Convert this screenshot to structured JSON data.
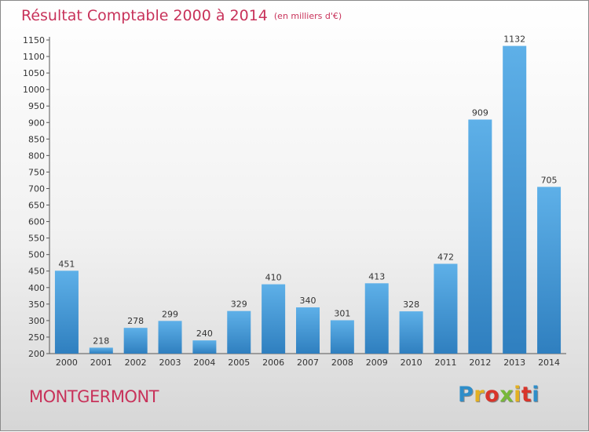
{
  "title": "Résultat Comptable 2000 à 2014",
  "unit_note": "(en milliers d'€)",
  "commune": "MONTGERMONT",
  "brand": {
    "letters": [
      "P",
      "r",
      "o",
      "x",
      "i",
      "t",
      "i"
    ]
  },
  "colors": {
    "title": "#c8325a",
    "bar_top": "#5eb0e8",
    "bar_bottom": "#2f7fbf"
  },
  "chart_data": {
    "type": "bar",
    "categories": [
      "2000",
      "2001",
      "2002",
      "2003",
      "2004",
      "2005",
      "2006",
      "2007",
      "2008",
      "2009",
      "2010",
      "2011",
      "2012",
      "2013",
      "2014"
    ],
    "values": [
      451,
      218,
      278,
      299,
      240,
      329,
      410,
      340,
      301,
      413,
      328,
      472,
      909,
      1132,
      705
    ],
    "ylim": [
      200,
      1150
    ],
    "yticks": [
      200,
      250,
      300,
      350,
      400,
      450,
      500,
      550,
      600,
      650,
      700,
      750,
      800,
      850,
      900,
      950,
      1000,
      1050,
      1100,
      1150
    ],
    "grid": false,
    "data_labels": true
  }
}
